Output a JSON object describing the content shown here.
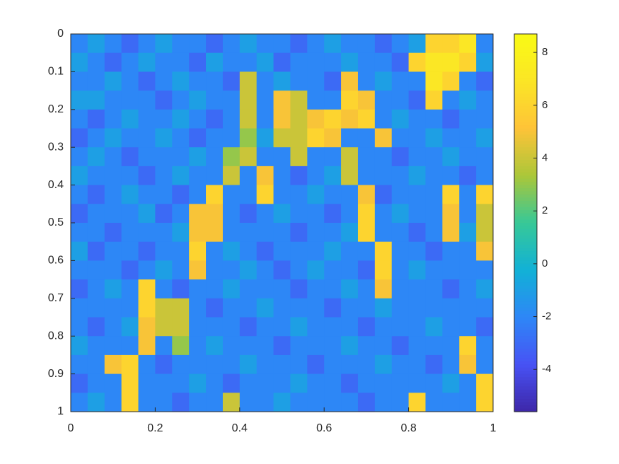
{
  "chart_data": {
    "type": "heatmap",
    "colormap": "parula",
    "y_reversed": true,
    "xlim": [
      0,
      1
    ],
    "ylim": [
      0,
      1
    ],
    "xticks": [
      0,
      0.2,
      0.4,
      0.6,
      0.8,
      1
    ],
    "yticks": [
      0,
      0.1,
      0.2,
      0.3,
      0.4,
      0.5,
      0.6,
      0.7,
      0.8,
      0.9,
      1
    ],
    "clim": [
      -5.6,
      8.7
    ],
    "cticks": [
      -4,
      -2,
      0,
      2,
      4,
      6,
      8
    ],
    "z": [
      [
        -2,
        -1,
        -2,
        -3,
        -2,
        -1,
        -2,
        -2,
        -3,
        -2,
        -1,
        -2,
        -2,
        -3,
        -2,
        -1,
        -2,
        -2,
        -3,
        -2,
        -1,
        6,
        6,
        7,
        -2
      ],
      [
        -1,
        -2,
        -3,
        -2,
        -1,
        -2,
        -2,
        -3,
        -1,
        -2,
        -2,
        -1,
        -3,
        -2,
        -2,
        -2,
        -1,
        -2,
        -2,
        -3,
        6,
        7,
        7,
        6,
        -1
      ],
      [
        -2,
        -2,
        -1,
        -2,
        -3,
        -2,
        -1,
        -2,
        -2,
        -3,
        4,
        -2,
        -1,
        -2,
        -2,
        -3,
        5,
        -2,
        -1,
        -2,
        -2,
        7,
        6,
        -2,
        -3
      ],
      [
        -1,
        -1,
        -2,
        -2,
        -2,
        -3,
        -2,
        -1,
        -2,
        -2,
        4,
        -2,
        5,
        4,
        -2,
        -2,
        6,
        5,
        -2,
        -2,
        -3,
        6,
        -2,
        -1,
        -2
      ],
      [
        -2,
        -3,
        -2,
        -1,
        -2,
        -2,
        -1,
        -2,
        -3,
        -2,
        4,
        -2,
        5,
        4,
        5,
        6,
        5,
        6,
        -2,
        -1,
        -2,
        -2,
        -3,
        -2,
        -2
      ],
      [
        -3,
        -2,
        -1,
        -2,
        -2,
        -1,
        -2,
        -3,
        -2,
        -2,
        3,
        -1,
        4,
        4,
        6,
        5,
        -2,
        -2,
        5,
        -2,
        -2,
        -1,
        -2,
        -2,
        -1
      ],
      [
        -2,
        -1,
        -2,
        -3,
        -2,
        -2,
        -2,
        -1,
        -2,
        3,
        4,
        -2,
        -2,
        4,
        -2,
        -2,
        4,
        -2,
        -2,
        -3,
        -2,
        -2,
        -1,
        -2,
        -2
      ],
      [
        -1,
        -2,
        -2,
        -2,
        -3,
        -2,
        -1,
        -2,
        -2,
        4,
        -2,
        5,
        -2,
        -3,
        -2,
        -1,
        4,
        -2,
        -2,
        -2,
        -1,
        -2,
        -2,
        -3,
        -2
      ],
      [
        -2,
        -3,
        -2,
        -1,
        -2,
        -2,
        -3,
        -2,
        6,
        -2,
        -2,
        6,
        -2,
        -2,
        -1,
        -2,
        -2,
        5,
        -3,
        -2,
        -2,
        -2,
        6,
        -2,
        6
      ],
      [
        -3,
        -2,
        -2,
        -2,
        -1,
        -3,
        -2,
        5,
        5,
        -2,
        -3,
        -2,
        -1,
        -2,
        -2,
        -3,
        -2,
        6,
        -2,
        -1,
        -2,
        -2,
        5,
        -2,
        4
      ],
      [
        -2,
        -2,
        -3,
        -2,
        -2,
        -2,
        -1,
        5,
        5,
        -2,
        -2,
        -2,
        -2,
        -3,
        -2,
        -2,
        -1,
        6,
        -2,
        -2,
        -3,
        -2,
        5,
        -1,
        4
      ],
      [
        -1,
        -3,
        -2,
        -2,
        -3,
        -2,
        -2,
        6,
        -2,
        -1,
        -2,
        -3,
        -2,
        -2,
        -2,
        -1,
        -2,
        -2,
        6,
        -2,
        -2,
        -3,
        -2,
        -2,
        5
      ],
      [
        -2,
        -2,
        -2,
        -3,
        -2,
        -1,
        -2,
        5,
        -2,
        -2,
        -1,
        -2,
        -3,
        -2,
        -1,
        -2,
        -2,
        -3,
        6,
        -2,
        -1,
        -2,
        -2,
        -2,
        -2
      ],
      [
        -3,
        -2,
        -1,
        -2,
        6,
        -2,
        -3,
        -2,
        -2,
        -1,
        -2,
        -2,
        -2,
        -3,
        -2,
        -2,
        -1,
        -2,
        5,
        -2,
        -2,
        -2,
        -3,
        -2,
        -1
      ],
      [
        -2,
        -2,
        -2,
        -2,
        6,
        4,
        4,
        -2,
        -3,
        -2,
        -2,
        -1,
        -2,
        -2,
        -2,
        -3,
        -2,
        -2,
        -1,
        -2,
        -2,
        -2,
        -2,
        -2,
        -2
      ],
      [
        -2,
        -3,
        -2,
        -1,
        5,
        4,
        4,
        -2,
        -2,
        -2,
        -3,
        -2,
        -2,
        -1,
        -2,
        -2,
        -2,
        -3,
        -2,
        -2,
        -2,
        -1,
        -2,
        -2,
        -3
      ],
      [
        -1,
        -2,
        -2,
        -2,
        5,
        -2,
        3,
        -2,
        -1,
        -2,
        -2,
        -2,
        -3,
        -2,
        -2,
        -2,
        -1,
        -2,
        -2,
        -3,
        -2,
        -2,
        -2,
        6,
        -2
      ],
      [
        -2,
        -2,
        5,
        6,
        -2,
        -3,
        -2,
        -2,
        -2,
        -2,
        -1,
        -2,
        -2,
        -2,
        -3,
        -2,
        -2,
        -2,
        -1,
        -2,
        -2,
        -3,
        -2,
        5,
        -2
      ],
      [
        -3,
        -2,
        -2,
        6,
        -2,
        -2,
        -2,
        -1,
        -2,
        -3,
        -2,
        -2,
        -2,
        -1,
        -2,
        -2,
        -3,
        -2,
        -2,
        -2,
        -2,
        -2,
        -1,
        -2,
        6
      ],
      [
        -2,
        -1,
        -2,
        6,
        -2,
        -2,
        -3,
        -2,
        -2,
        4,
        -2,
        -2,
        -1,
        -2,
        -2,
        -2,
        -2,
        -3,
        -2,
        -2,
        6,
        -2,
        -2,
        -2,
        6
      ]
    ]
  }
}
